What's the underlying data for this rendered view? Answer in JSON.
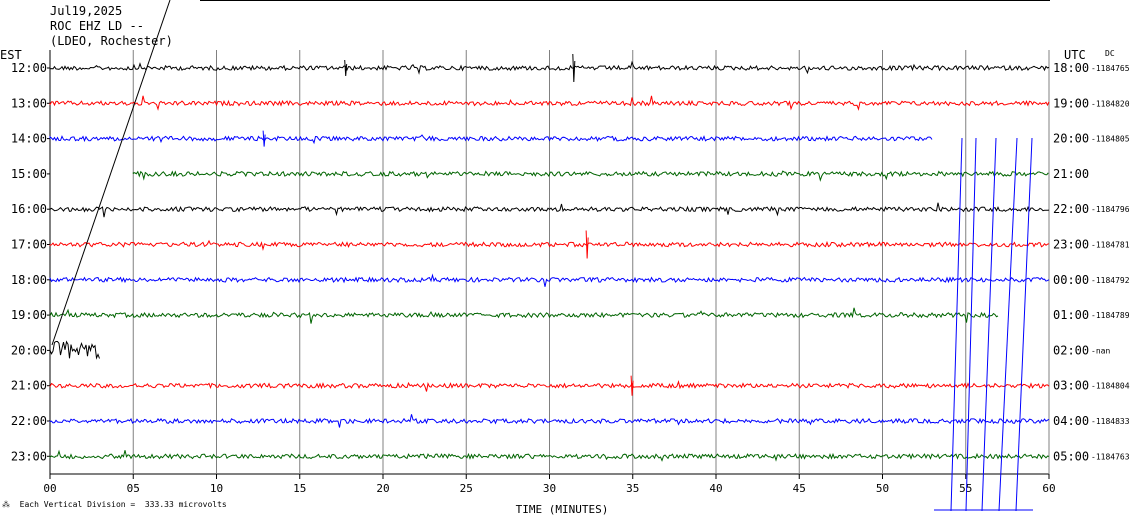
{
  "header": {
    "date": "Jul19,2025",
    "station": "ROC EHZ LD --",
    "network": "(LDEO, Rochester)"
  },
  "left_axis_label": "EST",
  "right_axis_label": "UTC",
  "dc_label": "DC",
  "x_axis_title": "TIME (MINUTES)",
  "footer": "Each Vertical Division =  333.33 microvolts",
  "colors": [
    "#000000",
    "#ff0000",
    "#0000ff",
    "#006400"
  ],
  "chart_data": {
    "type": "line",
    "title": "",
    "xlabel": "TIME (MINUTES)",
    "xlim": [
      0,
      60
    ],
    "x_ticks": [
      "00",
      "05",
      "10",
      "15",
      "20",
      "25",
      "30",
      "35",
      "40",
      "45",
      "50",
      "55",
      "60"
    ],
    "rows": [
      {
        "est": "12:00",
        "utc": "18:00",
        "dc": "-1184765",
        "start": 0,
        "end": 60
      },
      {
        "est": "13:00",
        "utc": "19:00",
        "dc": "-1184820",
        "start": 0,
        "end": 60
      },
      {
        "est": "14:00",
        "utc": "20:00",
        "dc": "-1184805",
        "start": 0,
        "end": 53
      },
      {
        "est": "15:00",
        "utc": "21:00",
        "dc": "",
        "start": 5,
        "end": 60
      },
      {
        "est": "16:00",
        "utc": "22:00",
        "dc": "-1184796",
        "start": 0,
        "end": 60
      },
      {
        "est": "17:00",
        "utc": "23:00",
        "dc": "-1184781",
        "start": 0,
        "end": 60
      },
      {
        "est": "18:00",
        "utc": "00:00",
        "dc": "-1184792",
        "start": 0,
        "end": 60
      },
      {
        "est": "19:00",
        "utc": "01:00",
        "dc": "-1184789",
        "start": 0,
        "end": 57
      },
      {
        "est": "20:00",
        "utc": "02:00",
        "dc": "-nan",
        "start": 0,
        "end": 3
      },
      {
        "est": "21:00",
        "utc": "03:00",
        "dc": "-1184804",
        "start": 0,
        "end": 60
      },
      {
        "est": "22:00",
        "utc": "04:00",
        "dc": "-1184833",
        "start": 0,
        "end": 60
      },
      {
        "est": "23:00",
        "utc": "05:00",
        "dc": "-1184763",
        "start": 0,
        "end": 60
      }
    ]
  }
}
